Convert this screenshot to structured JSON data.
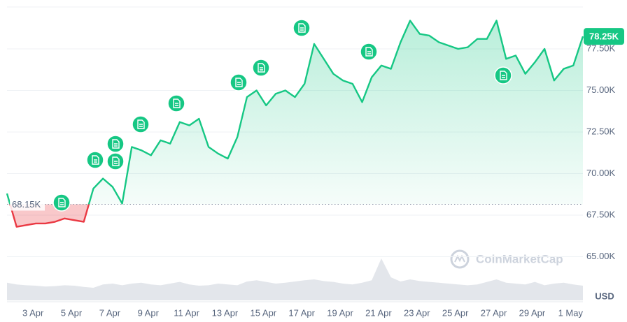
{
  "chart_data": {
    "type": "line",
    "categories": [
      null,
      null,
      null,
      "3 Apr",
      null,
      null,
      null,
      "5 Apr",
      null,
      null,
      null,
      "7 Apr",
      null,
      null,
      null,
      "9 Apr",
      null,
      null,
      null,
      "11 Apr",
      null,
      null,
      null,
      "13 Apr",
      null,
      null,
      null,
      "15 Apr",
      null,
      null,
      null,
      "17 Apr",
      null,
      null,
      null,
      "19 Apr",
      null,
      null,
      null,
      "21 Apr",
      null,
      null,
      null,
      "23 Apr",
      null,
      null,
      null,
      "25 Apr",
      null,
      null,
      null,
      "27 Apr",
      null,
      null,
      null,
      "29 Apr",
      null,
      null,
      null,
      "1 May",
      null
    ],
    "series": [
      {
        "color": "#16c784",
        "down_color": "#ea3943",
        "values": [
          68800,
          66800,
          66900,
          67000,
          67000,
          67100,
          67300,
          67200,
          67100,
          69100,
          69700,
          69200,
          68200,
          71600,
          71400,
          71100,
          72000,
          71800,
          73100,
          72900,
          73300,
          71600,
          71200,
          70900,
          72200,
          74600,
          75000,
          74100,
          74800,
          75000,
          74600,
          75400,
          77800,
          76900,
          76000,
          75600,
          75400,
          74300,
          75800,
          76500,
          76300,
          77900,
          79200,
          78400,
          78300,
          77900,
          77700,
          77500,
          77600,
          78100,
          78100,
          79200,
          76900,
          77100,
          76000,
          76700,
          77500,
          75600,
          76300,
          76500,
          78250
        ]
      },
      {
        "color": "#e3e6eb",
        "axis": "y2",
        "values": [
          42,
          38,
          36,
          35,
          33,
          34,
          36,
          35,
          32,
          30,
          38,
          40,
          36,
          40,
          42,
          38,
          36,
          40,
          44,
          38,
          35,
          36,
          40,
          38,
          36,
          45,
          48,
          44,
          40,
          42,
          45,
          48,
          50,
          46,
          44,
          40,
          38,
          42,
          48,
          100,
          55,
          45,
          50,
          46,
          44,
          42,
          40,
          38,
          36,
          38,
          44,
          50,
          42,
          40,
          38,
          44,
          36,
          40,
          42,
          38,
          35
        ]
      }
    ],
    "ylim": [
      62500,
      80000
    ],
    "yticks": [
      {
        "value": 65000,
        "label": "65.00K"
      },
      {
        "value": 67500,
        "label": "67.50K"
      },
      {
        "value": 70000,
        "label": "70.00K"
      },
      {
        "value": 72500,
        "label": "72.50K"
      },
      {
        "value": 75000,
        "label": "75.00K"
      },
      {
        "value": 77500,
        "label": "77.50K"
      }
    ],
    "y2lim": [
      0,
      100
    ],
    "grid": true,
    "baseline": {
      "value": 68150,
      "label": "68.15K"
    },
    "last_price": {
      "value": 78250,
      "label": "78.25K"
    },
    "currency_label": "USD",
    "watermark": "CoinMarketCap"
  }
}
